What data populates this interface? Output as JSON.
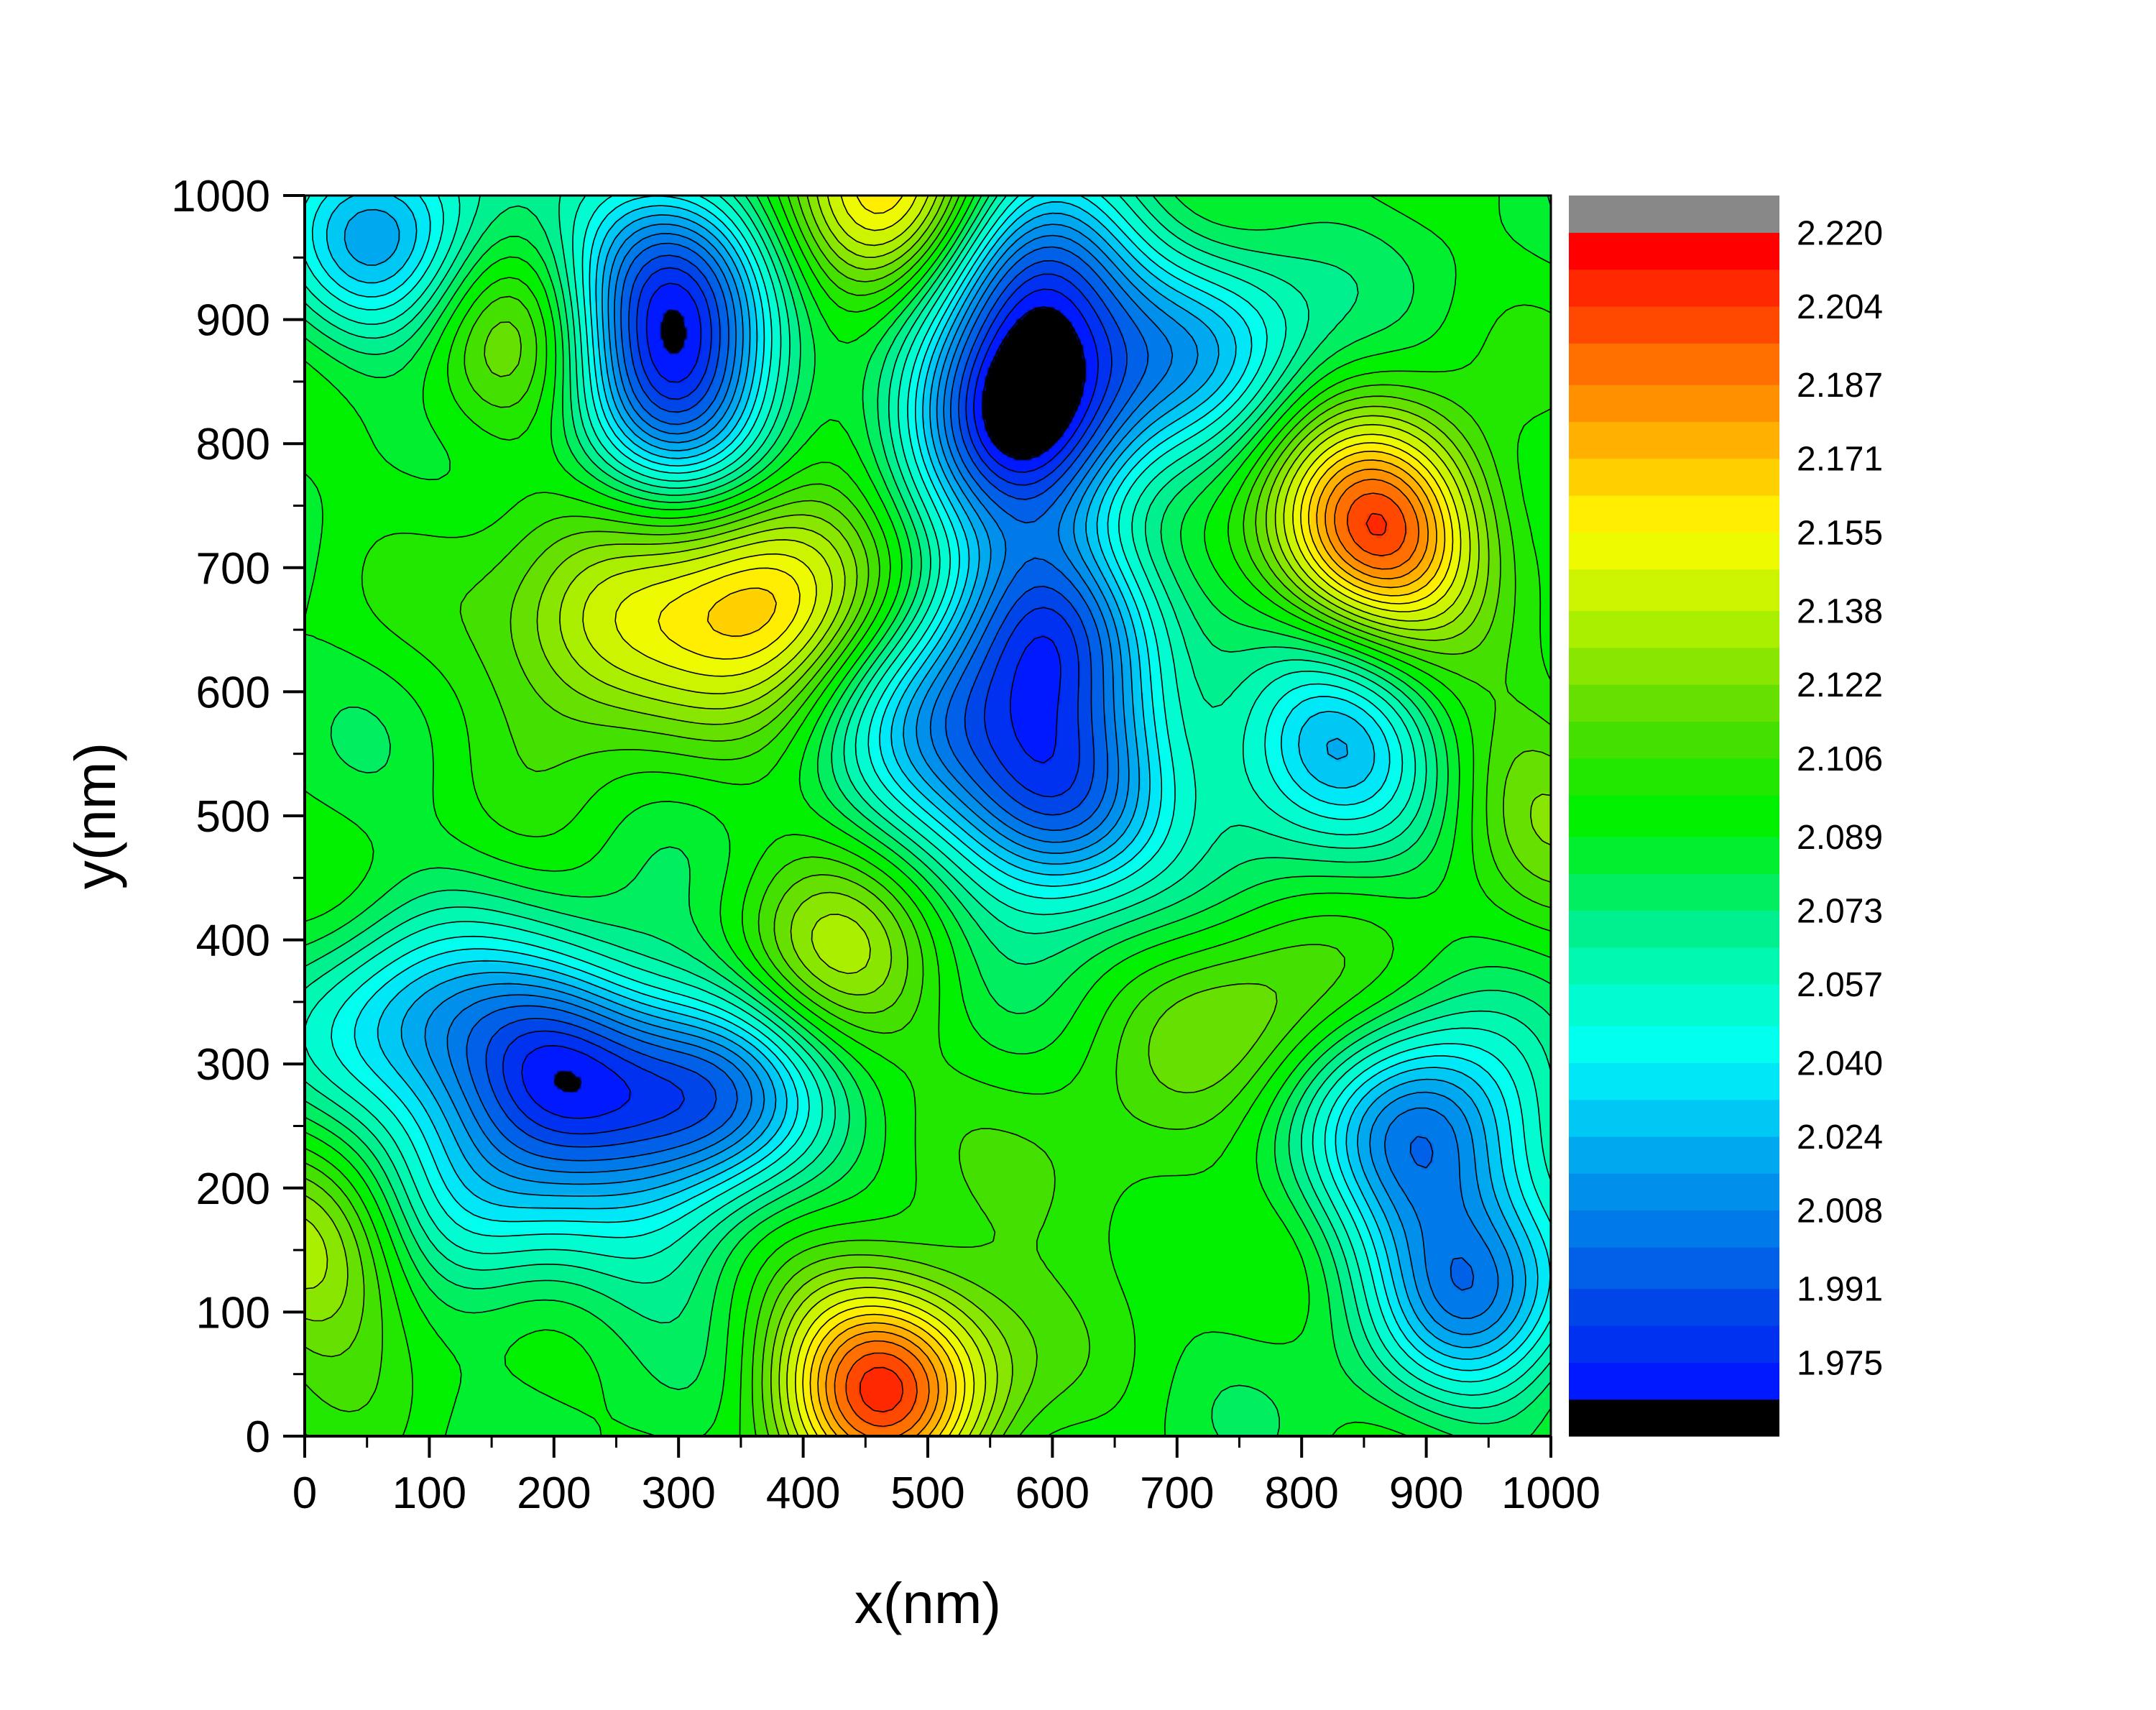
{
  "chart_data": {
    "type": "contour",
    "xlabel": "x(nm)",
    "ylabel": "y(nm)",
    "xlim": [
      0,
      1000
    ],
    "ylim": [
      0,
      1000
    ],
    "xticks": [
      0,
      100,
      200,
      300,
      400,
      500,
      600,
      700,
      800,
      900,
      1000
    ],
    "yticks": [
      0,
      100,
      200,
      300,
      400,
      500,
      600,
      700,
      800,
      900,
      1000
    ],
    "colorbar": {
      "range": [
        1.967,
        2.228
      ],
      "tick_labels": [
        "1.975",
        "1.991",
        "2.008",
        "2.024",
        "2.040",
        "2.057",
        "2.073",
        "2.089",
        "2.106",
        "2.122",
        "2.138",
        "2.155",
        "2.171",
        "2.187",
        "2.204",
        "2.220"
      ],
      "bands": [
        {
          "from": 1.959,
          "to": 1.967,
          "color": "#000000"
        },
        {
          "from": 1.967,
          "to": 1.975,
          "color": "#0019ff"
        },
        {
          "from": 1.975,
          "to": 1.983,
          "color": "#0030f0"
        },
        {
          "from": 1.983,
          "to": 1.991,
          "color": "#0045e8"
        },
        {
          "from": 1.991,
          "to": 2.0,
          "color": "#0060e8"
        },
        {
          "from": 2.0,
          "to": 2.008,
          "color": "#007ae8"
        },
        {
          "from": 2.008,
          "to": 2.016,
          "color": "#0090ec"
        },
        {
          "from": 2.016,
          "to": 2.024,
          "color": "#00a8f0"
        },
        {
          "from": 2.024,
          "to": 2.032,
          "color": "#00c8f4"
        },
        {
          "from": 2.032,
          "to": 2.04,
          "color": "#00e8f8"
        },
        {
          "from": 2.04,
          "to": 2.048,
          "color": "#00ffee"
        },
        {
          "from": 2.048,
          "to": 2.057,
          "color": "#00fcd0"
        },
        {
          "from": 2.057,
          "to": 2.065,
          "color": "#00f8b0"
        },
        {
          "from": 2.065,
          "to": 2.073,
          "color": "#00f090"
        },
        {
          "from": 2.073,
          "to": 2.081,
          "color": "#00ee60"
        },
        {
          "from": 2.081,
          "to": 2.089,
          "color": "#00f030"
        },
        {
          "from": 2.089,
          "to": 2.098,
          "color": "#00f000"
        },
        {
          "from": 2.098,
          "to": 2.106,
          "color": "#22e800"
        },
        {
          "from": 2.106,
          "to": 2.114,
          "color": "#44e000"
        },
        {
          "from": 2.114,
          "to": 2.122,
          "color": "#66e000"
        },
        {
          "from": 2.122,
          "to": 2.13,
          "color": "#88e600"
        },
        {
          "from": 2.13,
          "to": 2.138,
          "color": "#aaee00"
        },
        {
          "from": 2.138,
          "to": 2.147,
          "color": "#ccf400"
        },
        {
          "from": 2.147,
          "to": 2.155,
          "color": "#eefa00"
        },
        {
          "from": 2.155,
          "to": 2.163,
          "color": "#ffee00"
        },
        {
          "from": 2.163,
          "to": 2.171,
          "color": "#ffd000"
        },
        {
          "from": 2.171,
          "to": 2.179,
          "color": "#ffb000"
        },
        {
          "from": 2.179,
          "to": 2.187,
          "color": "#ff9000"
        },
        {
          "from": 2.187,
          "to": 2.196,
          "color": "#ff7000"
        },
        {
          "from": 2.196,
          "to": 2.204,
          "color": "#ff4800"
        },
        {
          "from": 2.204,
          "to": 2.212,
          "color": "#ff2800"
        },
        {
          "from": 2.212,
          "to": 2.22,
          "color": "#ff0000"
        },
        {
          "from": 2.22,
          "to": 2.228,
          "color": "#888888"
        }
      ]
    },
    "features": [
      {
        "x": 860,
        "y": 730,
        "value": 2.205,
        "kind": "peak"
      },
      {
        "x": 465,
        "y": 45,
        "value": 2.205,
        "kind": "peak"
      },
      {
        "x": 375,
        "y": 680,
        "value": 2.172,
        "kind": "peak"
      },
      {
        "x": 465,
        "y": 990,
        "value": 2.175,
        "kind": "peak"
      },
      {
        "x": 235,
        "y": 650,
        "value": 2.145,
        "kind": "peak"
      },
      {
        "x": 170,
        "y": 880,
        "value": 2.135,
        "kind": "peak"
      },
      {
        "x": 20,
        "y": 150,
        "value": 2.14,
        "kind": "peak"
      },
      {
        "x": 420,
        "y": 380,
        "value": 2.13,
        "kind": "peak"
      },
      {
        "x": 630,
        "y": 200,
        "value": 2.11,
        "kind": "peak"
      },
      {
        "x": 760,
        "y": 340,
        "value": 2.12,
        "kind": "peak"
      },
      {
        "x": 990,
        "y": 520,
        "value": 2.12,
        "kind": "peak"
      },
      {
        "x": 580,
        "y": 820,
        "value": 1.975,
        "kind": "valley"
      },
      {
        "x": 580,
        "y": 930,
        "value": 1.99,
        "kind": "valley"
      },
      {
        "x": 605,
        "y": 510,
        "value": 1.99,
        "kind": "valley"
      },
      {
        "x": 600,
        "y": 660,
        "value": 2.005,
        "kind": "valley"
      },
      {
        "x": 295,
        "y": 940,
        "value": 1.995,
        "kind": "valley"
      },
      {
        "x": 295,
        "y": 830,
        "value": 2.005,
        "kind": "valley"
      },
      {
        "x": 205,
        "y": 300,
        "value": 1.995,
        "kind": "valley"
      },
      {
        "x": 325,
        "y": 275,
        "value": 2.0,
        "kind": "valley"
      },
      {
        "x": 900,
        "y": 245,
        "value": 2.005,
        "kind": "valley"
      },
      {
        "x": 70,
        "y": 960,
        "value": 2.02,
        "kind": "valley"
      },
      {
        "x": 940,
        "y": 120,
        "value": 2.015,
        "kind": "valley"
      },
      {
        "x": 510,
        "y": 590,
        "value": 2.03,
        "kind": "valley"
      },
      {
        "x": 80,
        "y": 330,
        "value": 2.035,
        "kind": "valley"
      },
      {
        "x": 820,
        "y": 560,
        "value": 2.02,
        "kind": "valley"
      },
      {
        "x": 130,
        "y": 200,
        "value": 2.04,
        "kind": "valley"
      },
      {
        "x": 730,
        "y": 880,
        "value": 2.035,
        "kind": "valley"
      },
      {
        "x": 270,
        "y": 140,
        "value": 2.07,
        "kind": "valley"
      }
    ]
  }
}
